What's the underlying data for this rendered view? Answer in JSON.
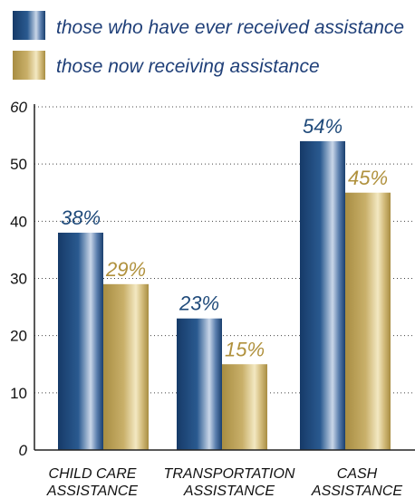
{
  "chart_data": {
    "type": "bar",
    "categories": [
      [
        "CHILD CARE",
        "ASSISTANCE"
      ],
      [
        "TRANSPORTATION",
        "ASSISTANCE"
      ],
      [
        "CASH",
        "ASSISTANCE"
      ]
    ],
    "series": [
      {
        "name": "those who have ever received assistance",
        "values": [
          38,
          23,
          54
        ],
        "labels": [
          "38%",
          "23%",
          "54%"
        ],
        "color": "#1f4a7a"
      },
      {
        "name": "those now receiving assistance",
        "values": [
          29,
          15,
          45
        ],
        "labels": [
          "29%",
          "15%",
          "45%"
        ],
        "color": "#b89a4a"
      }
    ],
    "y_ticks": [
      "0",
      "10",
      "20",
      "30",
      "40",
      "50",
      "60"
    ],
    "ylim": [
      0,
      60
    ],
    "grid": true,
    "legend_position": "top-left"
  }
}
